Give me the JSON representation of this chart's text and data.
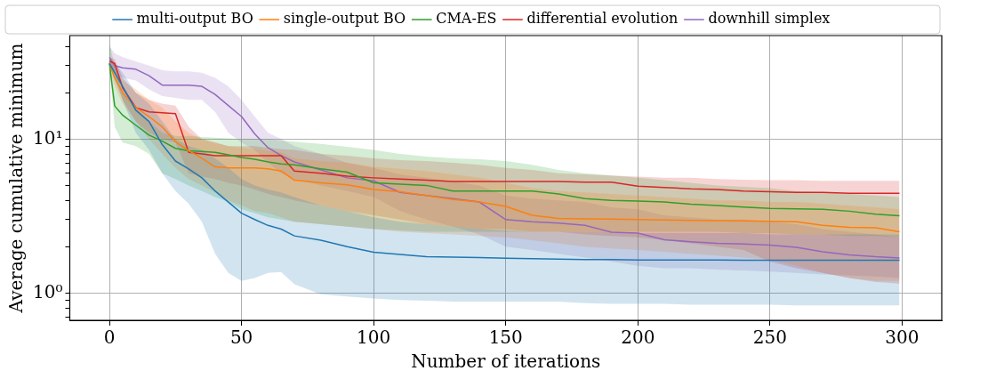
{
  "chart_data": {
    "type": "line",
    "xlabel": "Number of iterations",
    "ylabel": "Average cumulative minimum",
    "log": "y",
    "grid": true,
    "legend": "top",
    "marker": "none",
    "line_style": "solid",
    "xlim": [
      -15,
      315
    ],
    "xticks": [
      0,
      50,
      100,
      150,
      200,
      250,
      300
    ],
    "ylim": [
      0.665,
      47
    ],
    "yticks": [
      {
        "value": 0.7,
        "label": null
      },
      {
        "value": 0.8,
        "label": null
      },
      {
        "value": 0.9,
        "label": null
      },
      {
        "value": 1,
        "label": "10⁰"
      },
      {
        "value": 2,
        "label": null
      },
      {
        "value": 3,
        "label": null
      },
      {
        "value": 4,
        "label": null
      },
      {
        "value": 5,
        "label": null
      },
      {
        "value": 6,
        "label": null
      },
      {
        "value": 7,
        "label": null
      },
      {
        "value": 8,
        "label": null
      },
      {
        "value": 9,
        "label": null
      },
      {
        "value": 10,
        "label": "10¹"
      },
      {
        "value": 20,
        "label": null
      },
      {
        "value": 30,
        "label": null
      },
      {
        "value": 40,
        "label": null
      }
    ],
    "x": [
      0,
      2,
      5,
      10,
      15,
      20,
      25,
      30,
      35,
      40,
      45,
      50,
      55,
      60,
      65,
      70,
      80,
      90,
      100,
      110,
      120,
      130,
      140,
      150,
      160,
      170,
      180,
      190,
      200,
      210,
      220,
      230,
      240,
      250,
      260,
      270,
      280,
      290,
      299
    ],
    "series": [
      {
        "name": "multi-output BO",
        "color": "#1f77b4",
        "values": [
          31,
          27,
          22,
          15.4,
          13,
          9.2,
          7.2,
          6.4,
          5.6,
          4.6,
          3.9,
          3.3,
          3.0,
          2.75,
          2.6,
          2.35,
          2.2,
          2.0,
          1.84,
          1.78,
          1.72,
          1.71,
          1.7,
          1.68,
          1.67,
          1.66,
          1.65,
          1.65,
          1.64,
          1.64,
          1.64,
          1.64,
          1.63,
          1.63,
          1.63,
          1.63,
          1.63,
          1.63,
          1.63
        ],
        "lower": [
          30,
          24,
          18,
          11,
          8.5,
          6,
          4.6,
          3.8,
          2.9,
          1.8,
          1.35,
          1.2,
          1.25,
          1.35,
          1.37,
          1.14,
          0.98,
          0.95,
          0.92,
          0.9,
          0.89,
          0.88,
          0.88,
          0.88,
          0.88,
          0.88,
          0.86,
          0.85,
          0.85,
          0.85,
          0.84,
          0.84,
          0.84,
          0.84,
          0.83,
          0.83,
          0.83,
          0.83,
          0.83
        ],
        "upper": [
          33,
          31,
          27,
          20,
          17,
          13,
          10,
          9,
          8.5,
          7.5,
          6.5,
          5.5,
          5,
          4.7,
          4.5,
          4.2,
          3.7,
          3.4,
          3.1,
          2.9,
          2.8,
          2.7,
          2.6,
          2.55,
          2.5,
          2.5,
          2.5,
          2.5,
          2.45,
          2.45,
          2.45,
          2.45,
          2.45,
          2.4,
          2.4,
          2.4,
          2.4,
          2.4,
          2.4
        ]
      },
      {
        "name": "single-output BO",
        "color": "#ff7f0e",
        "values": [
          31,
          25,
          20,
          16,
          14,
          12,
          9.6,
          8.4,
          7.5,
          6.6,
          6.5,
          6.5,
          6.5,
          6.4,
          6.2,
          5.4,
          5.2,
          5.05,
          4.7,
          4.55,
          4.3,
          4.05,
          3.9,
          3.65,
          3.2,
          3.05,
          3.03,
          3.02,
          3.0,
          2.98,
          2.96,
          2.95,
          2.94,
          2.92,
          2.9,
          2.75,
          2.67,
          2.65,
          2.5
        ],
        "lower": [
          28,
          22,
          17,
          13,
          10,
          8,
          6.5,
          5.5,
          5,
          4.5,
          4,
          3.7,
          3.4,
          3.3,
          3.1,
          2.9,
          2.8,
          2.7,
          2.6,
          2.5,
          2.45,
          2.4,
          2.35,
          2.3,
          2.2,
          2.1,
          2.0,
          1.95,
          1.9,
          1.85,
          1.8,
          1.75,
          1.7,
          1.65,
          1.5,
          1.35,
          1.25,
          1.2,
          1.2
        ],
        "upper": [
          34,
          30,
          24,
          21,
          18,
          16,
          13,
          11,
          10,
          9.5,
          9,
          8.8,
          8.6,
          8.4,
          8.2,
          7.5,
          7.2,
          7,
          6.6,
          6.4,
          6.2,
          5.9,
          5.6,
          5.2,
          4.8,
          4.6,
          4.5,
          4.4,
          4.3,
          4.2,
          4.1,
          4.0,
          4.0,
          3.9,
          3.9,
          3.8,
          3.7,
          3.6,
          3.5
        ]
      },
      {
        "name": "CMA-ES",
        "color": "#2ca02c",
        "values": [
          31,
          16.4,
          14.3,
          12.3,
          10.6,
          9.7,
          8.7,
          8.4,
          8.3,
          8.2,
          7.9,
          7.6,
          7.4,
          7.1,
          6.9,
          6.8,
          6.4,
          6.1,
          5.2,
          5.1,
          5.0,
          4.6,
          4.6,
          4.6,
          4.6,
          4.4,
          4.1,
          4.0,
          3.95,
          3.9,
          3.77,
          3.7,
          3.62,
          3.55,
          3.52,
          3.5,
          3.4,
          3.25,
          3.18
        ],
        "lower": [
          30,
          12,
          9.5,
          9,
          8,
          6,
          5.5,
          5,
          4.6,
          4.2,
          3.9,
          3.5,
          3.3,
          3.1,
          3.0,
          2.9,
          2.8,
          2.7,
          2.6,
          2.55,
          2.5,
          2.5,
          2.5,
          2.5,
          2.5,
          2.5,
          2.5,
          2.5,
          2.5,
          2.5,
          2.5,
          2.5,
          2.45,
          2.45,
          2.4,
          2.4,
          2.35,
          2.35,
          2.3
        ],
        "upper": [
          42,
          30,
          20,
          16,
          13,
          11,
          10.5,
          10.5,
          10.3,
          10.2,
          10.1,
          10,
          10,
          10,
          9.8,
          9.6,
          9.3,
          8.9,
          8.5,
          8,
          7.7,
          7.5,
          7.4,
          7.2,
          6.8,
          6.3,
          6.0,
          5.8,
          5.6,
          5.4,
          5.2,
          5.0,
          4.9,
          4.8,
          4.6,
          4.5,
          4.4,
          4.3,
          4.2
        ]
      },
      {
        "name": "differential evolution",
        "color": "#d62728",
        "values": [
          32,
          31,
          21.5,
          16,
          15,
          14.8,
          14.6,
          8.2,
          8.0,
          7.8,
          7.8,
          7.8,
          7.8,
          7.8,
          7.8,
          6.2,
          6.0,
          5.75,
          5.6,
          5.5,
          5.4,
          5.3,
          5.3,
          5.3,
          5.3,
          5.3,
          5.25,
          5.25,
          4.95,
          4.85,
          4.75,
          4.7,
          4.6,
          4.55,
          4.5,
          4.5,
          4.45,
          4.45,
          4.45
        ],
        "lower": [
          30,
          26,
          18,
          13,
          11,
          10,
          9.5,
          6,
          5.7,
          5.5,
          5.2,
          5,
          4.7,
          4.4,
          4.2,
          4,
          3.7,
          3.4,
          3.2,
          3.0,
          2.8,
          2.7,
          2.6,
          2.6,
          2.5,
          2.5,
          2.4,
          2.35,
          2.3,
          2.2,
          2.1,
          2.0,
          1.9,
          1.6,
          1.45,
          1.35,
          1.25,
          1.18,
          1.15
        ],
        "upper": [
          34,
          33,
          25,
          20,
          18,
          17,
          16.5,
          12,
          10,
          9.5,
          9,
          9,
          9,
          8.8,
          8.6,
          8.5,
          8,
          7.8,
          7.5,
          7.3,
          7.2,
          7,
          6.8,
          6.5,
          6.3,
          6,
          5.9,
          5.8,
          5.7,
          5.6,
          5.6,
          5.5,
          5.45,
          5.4,
          5.4,
          5.35,
          5.35,
          5.35,
          5.35
        ]
      },
      {
        "name": "downhill simplex",
        "color": "#9467bd",
        "values": [
          34,
          30,
          29,
          28.4,
          25.8,
          22.4,
          22.4,
          22.4,
          22,
          19.5,
          16.5,
          14,
          10.8,
          8.8,
          7.8,
          7.1,
          6.3,
          5.6,
          5.35,
          4.5,
          4.3,
          4.1,
          3.9,
          3.0,
          2.9,
          2.85,
          2.75,
          2.48,
          2.45,
          2.22,
          2.15,
          2.1,
          2.08,
          2.05,
          1.98,
          1.85,
          1.77,
          1.72,
          1.69
        ],
        "lower": [
          30,
          27,
          25,
          24,
          21,
          19,
          18.5,
          18,
          18,
          15,
          11,
          9.5,
          8.5,
          7,
          6,
          5.5,
          5,
          4.6,
          4.2,
          3.4,
          3.0,
          2.7,
          2.4,
          2.0,
          1.9,
          1.8,
          1.7,
          1.6,
          1.5,
          1.45,
          1.45,
          1.42,
          1.4,
          1.38,
          1.35,
          1.32,
          1.3,
          1.28,
          1.25
        ],
        "upper": [
          40,
          36,
          34,
          32,
          30,
          28,
          27.5,
          27.5,
          27,
          25,
          22,
          18,
          14,
          11,
          10,
          9,
          8,
          7,
          6.5,
          5.9,
          5.6,
          5.3,
          5.0,
          4.3,
          4.1,
          4.0,
          3.9,
          3.6,
          3.5,
          3.2,
          3.1,
          3.0,
          3.0,
          2.9,
          2.8,
          2.6,
          2.5,
          2.4,
          2.3
        ]
      }
    ]
  }
}
